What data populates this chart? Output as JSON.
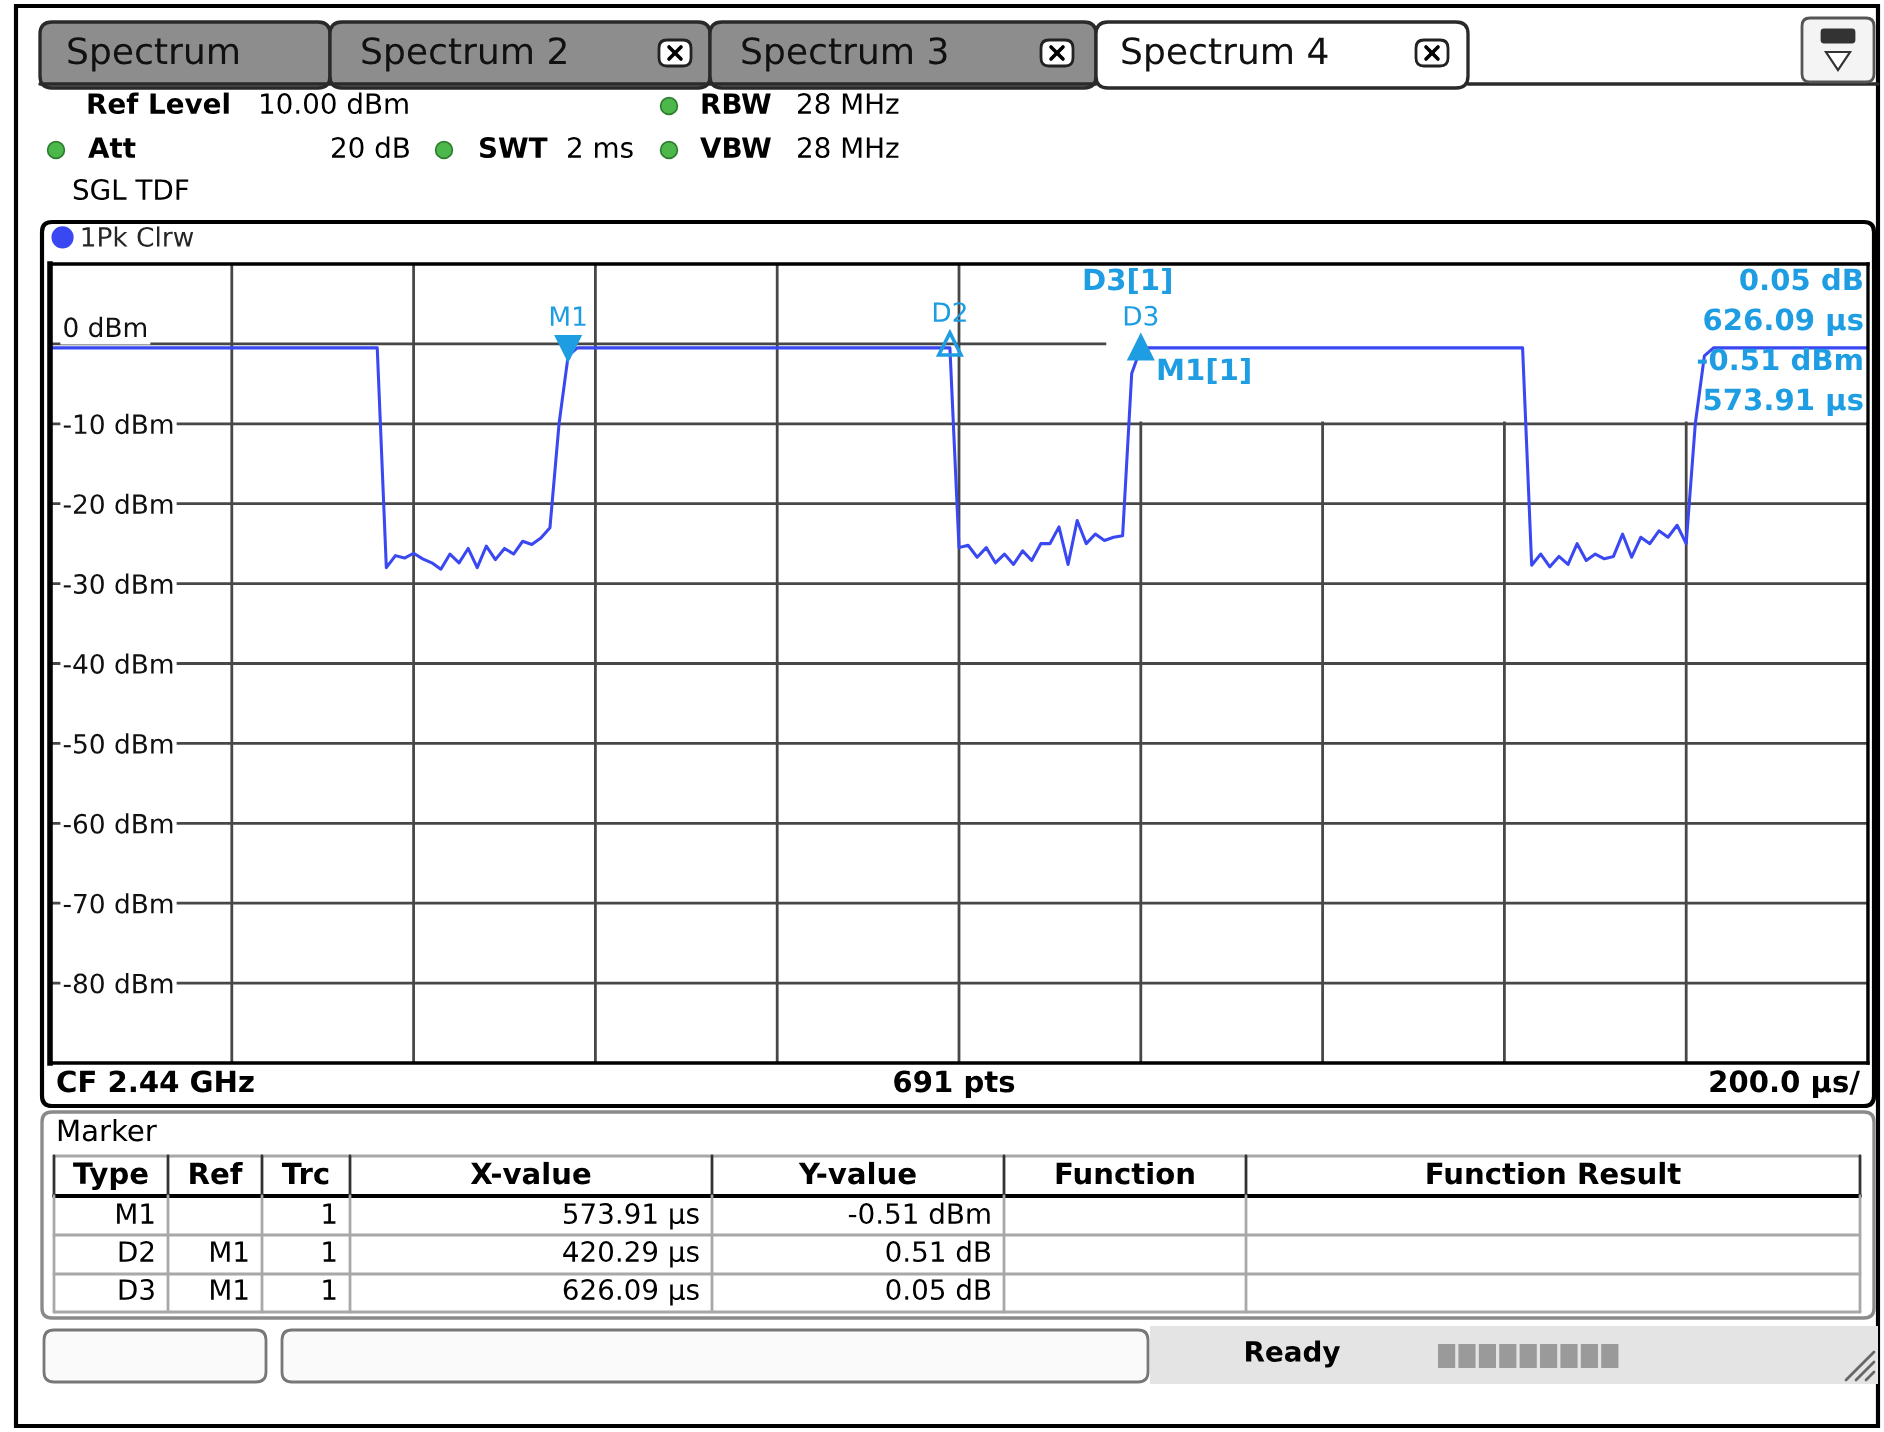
{
  "chart_data": {
    "type": "line",
    "categories": [
      null,
      null,
      null,
      null,
      null,
      null,
      null,
      null,
      null,
      null,
      null,
      null,
      null,
      null,
      null,
      null,
      null,
      null,
      null,
      null,
      null,
      null,
      null,
      null,
      null,
      null,
      null,
      null,
      null,
      null,
      null,
      null,
      null,
      null,
      null,
      null,
      null,
      null,
      null,
      null,
      null,
      null,
      null,
      null,
      null,
      null,
      null,
      null,
      null,
      null,
      null,
      null,
      null,
      null,
      null,
      null,
      null,
      null,
      null,
      null,
      null,
      null,
      null,
      null,
      null,
      null,
      null,
      null,
      null,
      null,
      null,
      null,
      null,
      null,
      null,
      null,
      null,
      null,
      null,
      null,
      null,
      null,
      null,
      null,
      null,
      null,
      null,
      null,
      null,
      null,
      null,
      null,
      null,
      null,
      null,
      null,
      null,
      null,
      null,
      null,
      null,
      null,
      null,
      null,
      null,
      null,
      null,
      null,
      null,
      null,
      null,
      null,
      null,
      null,
      null,
      null,
      null,
      null,
      null,
      null,
      null,
      null,
      null,
      null,
      null,
      null,
      null,
      null,
      null,
      null,
      null,
      null,
      null,
      null,
      null,
      null,
      null,
      null,
      null,
      null,
      null,
      null,
      null,
      null,
      null,
      null,
      null,
      null,
      null,
      null,
      null,
      null,
      null,
      null,
      null,
      null,
      null,
      null,
      null,
      null,
      null,
      null,
      null,
      null,
      null,
      null,
      null,
      null,
      null,
      null,
      null,
      null,
      null,
      null,
      null,
      null,
      null,
      null,
      null,
      null,
      null,
      null,
      null,
      null,
      null,
      null,
      null,
      null,
      null,
      null,
      null,
      null,
      null,
      null,
      null,
      null,
      null,
      null,
      null,
      null,
      null
    ],
    "series": [
      {
        "name": "1Pk Clrw",
        "color": "#3a48f2",
        "values": [
          -0.5,
          -0.5,
          -0.5,
          -0.5,
          -0.5,
          -0.5,
          -0.5,
          -0.5,
          -0.5,
          -0.5,
          -0.5,
          -0.5,
          -0.5,
          -0.5,
          -0.5,
          -0.5,
          -0.5,
          -0.5,
          -0.5,
          -0.5,
          -0.5,
          -0.5,
          -0.5,
          -0.5,
          -0.5,
          -0.5,
          -0.5,
          -0.5,
          -0.5,
          -0.5,
          -0.5,
          -0.5,
          -0.5,
          -0.5,
          -0.5,
          -0.5,
          -0.5,
          -28.0,
          -26.5,
          -26.8,
          -26.2,
          -26.9,
          -27.4,
          -28.2,
          -26.3,
          -27.4,
          -25.6,
          -28.0,
          -25.3,
          -27.0,
          -25.6,
          -26.3,
          -24.7,
          -25.1,
          -24.3,
          -23.0,
          -10.0,
          -1.5,
          -0.5,
          -0.5,
          -0.5,
          -0.5,
          -0.5,
          -0.5,
          -0.5,
          -0.5,
          -0.5,
          -0.5,
          -0.5,
          -0.5,
          -0.5,
          -0.5,
          -0.5,
          -0.5,
          -0.5,
          -0.5,
          -0.5,
          -0.5,
          -0.5,
          -0.5,
          -0.5,
          -0.5,
          -0.5,
          -0.5,
          -0.5,
          -0.5,
          -0.5,
          -0.5,
          -0.5,
          -0.5,
          -0.5,
          -0.5,
          -0.5,
          -0.5,
          -0.5,
          -0.5,
          -0.5,
          -0.5,
          -0.5,
          -0.5,
          -25.5,
          -25.2,
          -26.7,
          -25.5,
          -27.4,
          -26.3,
          -27.6,
          -25.9,
          -27.1,
          -25.0,
          -25.0,
          -22.9,
          -27.6,
          -22.1,
          -25.0,
          -23.8,
          -24.6,
          -24.2,
          -24.0,
          -3.7,
          -0.5,
          -0.5,
          -0.5,
          -0.5,
          -0.5,
          -0.5,
          -0.5,
          -0.5,
          -0.5,
          -0.5,
          -0.5,
          -0.5,
          -0.5,
          -0.5,
          -0.5,
          -0.5,
          -0.5,
          -0.5,
          -0.5,
          -0.5,
          -0.5,
          -0.5,
          -0.5,
          -0.5,
          -0.5,
          -0.5,
          -0.5,
          -0.5,
          -0.5,
          -0.5,
          -0.5,
          -0.5,
          -0.5,
          -0.5,
          -0.5,
          -0.5,
          -0.5,
          -0.5,
          -0.5,
          -0.5,
          -0.5,
          -0.5,
          -0.5,
          -27.7,
          -26.3,
          -27.9,
          -26.6,
          -27.6,
          -25.0,
          -27.1,
          -26.3,
          -26.9,
          -26.6,
          -23.8,
          -26.7,
          -24.2,
          -25.0,
          -23.4,
          -24.2,
          -22.7,
          -25.0,
          -10.0,
          -1.5,
          -0.5,
          -0.5,
          -0.5,
          -0.5,
          -0.5,
          -0.5,
          -0.5,
          -0.5,
          -0.5,
          -0.5,
          -0.5,
          -0.5,
          -0.5,
          -0.5,
          -0.5,
          -0.5,
          -0.5,
          -0.5
        ]
      },
      {
        "type": "scatter",
        "color": "#1f9de3",
        "marker": "triangle",
        "values": [
          null,
          null,
          null,
          null,
          null,
          null,
          null,
          null,
          null,
          null,
          null,
          null,
          null,
          null,
          null,
          null,
          null,
          null,
          null,
          null,
          null,
          null,
          null,
          null,
          null,
          null,
          null,
          null,
          null,
          null,
          null,
          null,
          null,
          null,
          null,
          null,
          null,
          null,
          null,
          null,
          null,
          null,
          null,
          null,
          null,
          null,
          null,
          null,
          null,
          null,
          null,
          null,
          null,
          null,
          null,
          null,
          null,
          -0.51,
          null,
          null,
          null,
          null,
          null,
          null,
          null,
          null,
          null,
          null,
          null,
          null,
          null,
          null,
          null,
          null,
          null,
          null,
          null,
          null,
          null,
          null,
          null,
          null,
          null,
          null,
          null,
          null,
          null,
          null,
          null,
          null,
          null,
          null,
          null,
          null,
          null,
          null,
          null,
          null,
          null,
          0.0,
          null,
          null,
          null,
          null,
          null,
          null,
          null,
          null,
          null,
          null,
          null,
          null,
          null,
          null,
          null,
          null,
          null,
          null,
          null,
          null,
          -0.46,
          null,
          null,
          null,
          null,
          null,
          null,
          null,
          null,
          null,
          null,
          null,
          null,
          null,
          null,
          null,
          null,
          null,
          null,
          null,
          null,
          null,
          null,
          null,
          null,
          null,
          null,
          null,
          null,
          null,
          null,
          null,
          null,
          null,
          null,
          null,
          null,
          null,
          null,
          null,
          null,
          null,
          null,
          null,
          null,
          null,
          null,
          null,
          null,
          null,
          null,
          null,
          null,
          null,
          null,
          null,
          null,
          null,
          null,
          null,
          null,
          null,
          null,
          null,
          null,
          null,
          null,
          null,
          null,
          null,
          null,
          null,
          null,
          null,
          null,
          null,
          null,
          null,
          null,
          null,
          null
        ],
        "value_labels": [
          null,
          null,
          null,
          null,
          null,
          null,
          null,
          null,
          null,
          null,
          null,
          null,
          null,
          null,
          null,
          null,
          null,
          null,
          null,
          null,
          null,
          null,
          null,
          null,
          null,
          null,
          null,
          null,
          null,
          null,
          null,
          null,
          null,
          null,
          null,
          null,
          null,
          null,
          null,
          null,
          null,
          null,
          null,
          null,
          null,
          null,
          null,
          null,
          null,
          null,
          null,
          null,
          null,
          null,
          null,
          null,
          null,
          "M1",
          null,
          null,
          null,
          null,
          null,
          null,
          null,
          null,
          null,
          null,
          null,
          null,
          null,
          null,
          null,
          null,
          null,
          null,
          null,
          null,
          null,
          null,
          null,
          null,
          null,
          null,
          null,
          null,
          null,
          null,
          null,
          null,
          null,
          null,
          null,
          null,
          null,
          null,
          null,
          null,
          null,
          "D2",
          null,
          null,
          null,
          null,
          null,
          null,
          null,
          null,
          null,
          null,
          null,
          null,
          null,
          null,
          null,
          null,
          null,
          null,
          null,
          null,
          "D3",
          null,
          null,
          null,
          null,
          null,
          null,
          null,
          null,
          null,
          null,
          null,
          null,
          null,
          null,
          null,
          null,
          null,
          null,
          null,
          null,
          null,
          null,
          null,
          null,
          null,
          null,
          null,
          null,
          null,
          null,
          null,
          null,
          null,
          null,
          null,
          null,
          null,
          null,
          null,
          null,
          null,
          null,
          null,
          null,
          null,
          null,
          null,
          null,
          null,
          null,
          null,
          null,
          null,
          null,
          null,
          null,
          null,
          null,
          null,
          null,
          null,
          null,
          null,
          null,
          null,
          null,
          null,
          null,
          null,
          null,
          null,
          null,
          null,
          null,
          null,
          null,
          null,
          null,
          null,
          null
        ]
      }
    ],
    "ylim": [
      -90,
      10
    ],
    "yticks": [
      {
        "value": 0,
        "label": "0 dBm"
      },
      {
        "value": -10,
        "label": "-10 dBm"
      },
      {
        "value": -20,
        "label": "-20 dBm"
      },
      {
        "value": -30,
        "label": "-30 dBm"
      },
      {
        "value": -40,
        "label": "-40 dBm"
      },
      {
        "value": -50,
        "label": "-50 dBm"
      },
      {
        "value": -60,
        "label": "-60 dBm"
      },
      {
        "value": -70,
        "label": "-70 dBm"
      },
      {
        "value": -80,
        "label": "-80 dBm"
      }
    ],
    "tick_labels": "y",
    "grid": true,
    "legend": "top left",
    "annotations": [
      "Spectrum",
      "Spectrum 2",
      "Spectrum 3",
      "Spectrum 4",
      "Ref Level",
      "10.00 dBm",
      "RBW",
      "28 MHz",
      "Att",
      "20 dB",
      "SWT",
      "2 ms",
      "VBW",
      "28 MHz",
      "SGL TDF",
      "D3[1]",
      "0.05 dB",
      "626.09 µs",
      "M1[1]",
      "-0.51 dBm",
      "573.91 µs",
      "CF 2.44 GHz",
      "691 pts",
      "200.0 µs/",
      "Ready",
      "Marker",
      "Type",
      "Ref",
      "Trc",
      "X-value",
      "Y-value",
      "Function",
      "Function Result",
      "M1",
      "1",
      "573.91 µs",
      "-0.51 dBm",
      "D2",
      "M1",
      "1",
      "420.29 µs",
      "0.51 dB",
      "D3",
      "M1",
      "1",
      "626.09 µs",
      "0.05 dB"
    ]
  }
}
